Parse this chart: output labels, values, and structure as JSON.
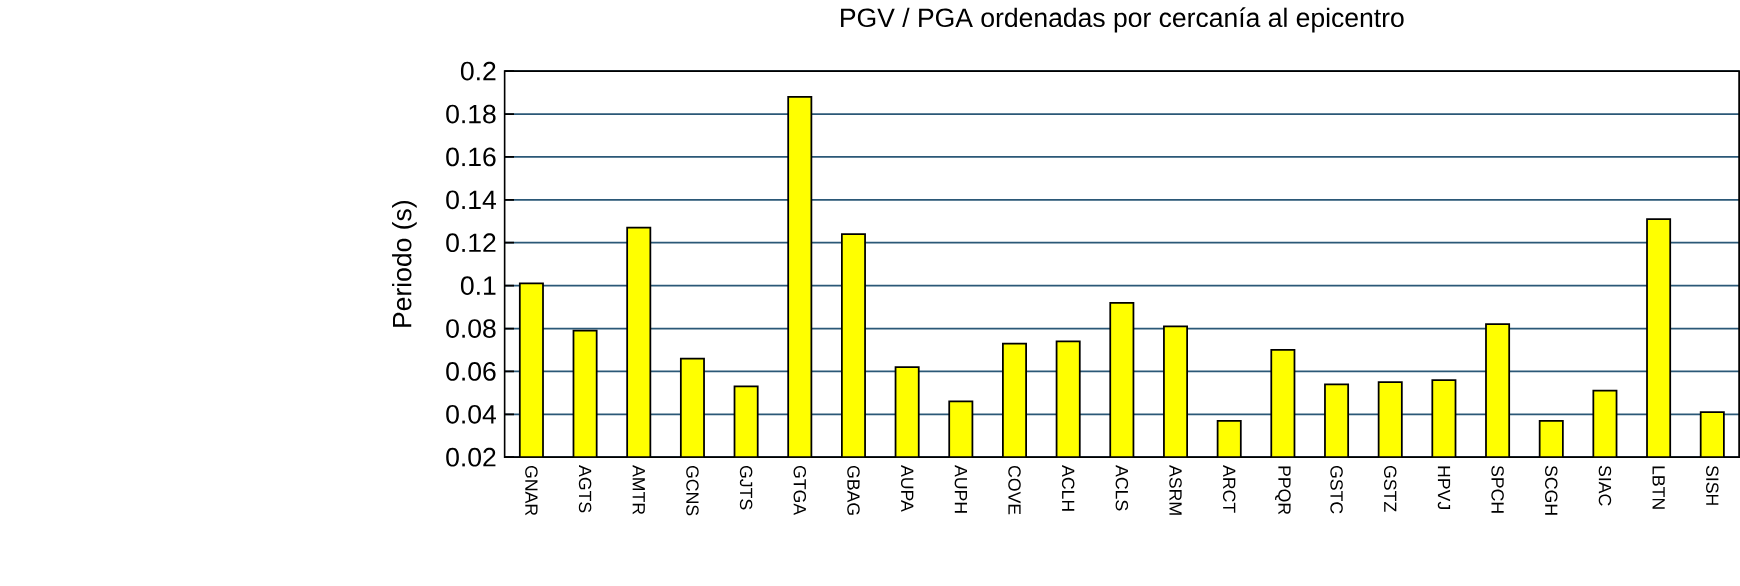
{
  "chart_data": {
    "type": "bar",
    "title": "PGV / PGA ordenadas por cercanía al epicentro",
    "ylabel": "Periodo (s)",
    "categories": [
      "GNAR",
      "AGTS",
      "AMTR",
      "GCNS",
      "GJTS",
      "GTGA",
      "GBAG",
      "AUPA",
      "AUPH",
      "COVE",
      "ACLH",
      "ACLS",
      "ASRM",
      "ARCT",
      "PPQR",
      "GSTC",
      "GSTZ",
      "HPVJ",
      "SPCH",
      "SCGH",
      "SIAC",
      "LBTN",
      "SISH"
    ],
    "values": [
      0.101,
      0.079,
      0.127,
      0.066,
      0.053,
      0.188,
      0.124,
      0.062,
      0.046,
      0.073,
      0.074,
      0.092,
      0.081,
      0.037,
      0.07,
      0.054,
      0.055,
      0.056,
      0.082,
      0.037,
      0.051,
      0.131,
      0.041
    ],
    "color": "#ffff00",
    "ylim": [
      0.02,
      0.2
    ],
    "yticks": [
      0.02,
      0.04,
      0.06,
      0.08,
      0.1,
      0.12,
      0.14,
      0.16,
      0.18,
      0.2
    ],
    "grid": "y"
  }
}
